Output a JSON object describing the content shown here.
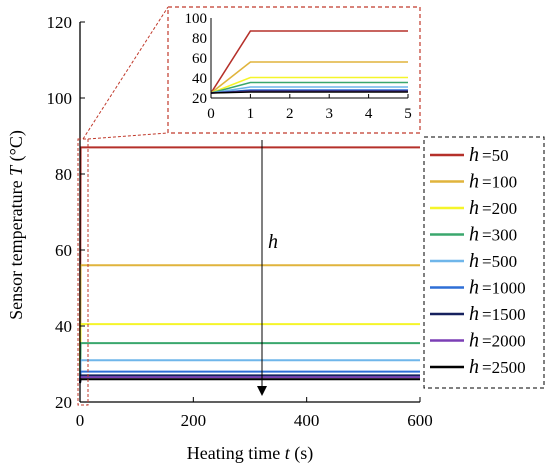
{
  "chart_data": {
    "type": "line",
    "xlabel": {
      "text": "Heating time ",
      "var": "t",
      "unit": " (s)"
    },
    "ylabel": {
      "text": "Sensor temperature ",
      "var": "T",
      "unit": " (°C)"
    },
    "xlim": [
      0,
      600
    ],
    "ylim": [
      20,
      120
    ],
    "xticks": [
      "0",
      "200",
      "400",
      "600"
    ],
    "yticks": [
      "20",
      "40",
      "60",
      "80",
      "100",
      "120"
    ],
    "x": [
      0,
      1,
      600
    ],
    "grid": false,
    "legend_position": "right",
    "legend_var": "h",
    "series": [
      {
        "name": "=50",
        "color": "#b5302a",
        "values": [
          25,
          87,
          87
        ]
      },
      {
        "name": "=100",
        "color": "#e0b43c",
        "values": [
          25,
          56,
          56
        ]
      },
      {
        "name": "=200",
        "color": "#f5f52a",
        "values": [
          25,
          40.5,
          40.5
        ]
      },
      {
        "name": "=300",
        "color": "#3aa76d",
        "values": [
          25,
          35.5,
          35.5
        ]
      },
      {
        "name": "=500",
        "color": "#6fb6ea",
        "values": [
          25,
          31,
          31
        ]
      },
      {
        "name": "=1000",
        "color": "#2e6fd6",
        "values": [
          25,
          28,
          28
        ]
      },
      {
        "name": "=1500",
        "color": "#16215e",
        "values": [
          25,
          27,
          27
        ]
      },
      {
        "name": "=2000",
        "color": "#7b3fb5",
        "values": [
          25,
          26.5,
          26.5
        ]
      },
      {
        "name": "=2500",
        "color": "#000000",
        "values": [
          25,
          26,
          26
        ]
      }
    ],
    "annotation": {
      "text": "h"
    },
    "inset": {
      "xlim": [
        0,
        5
      ],
      "ylim": [
        20,
        100
      ],
      "xticks": [
        "0",
        "1",
        "2",
        "3",
        "4",
        "5"
      ],
      "yticks": [
        "20",
        "40",
        "60",
        "80",
        "100"
      ]
    }
  }
}
